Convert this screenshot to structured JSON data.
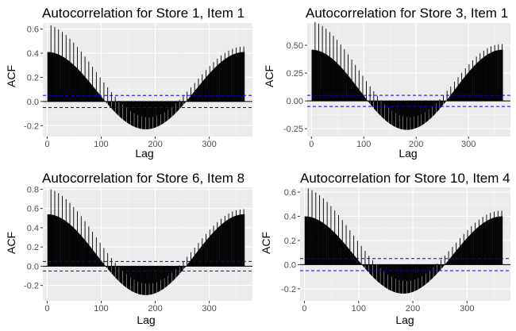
{
  "colors": {
    "panel_background": "#ebebeb",
    "grid_major": "#ffffff",
    "grid_minor": "#f5f5f5",
    "bars": "#000000",
    "confidence_bounds": "#0000ff",
    "tick_label": "#4d4d4d"
  },
  "chart_data": [
    {
      "type": "bar",
      "title": "Autocorrelation for Store 1, Item 1",
      "xlabel": "Lag",
      "ylabel": "ACF",
      "xlim": [
        -8,
        380
      ],
      "ylim": [
        -0.29,
        0.65
      ],
      "x_ticks": [
        0,
        100,
        200,
        300
      ],
      "x_tick_labels": [
        "0",
        "100",
        "200",
        "300"
      ],
      "y_ticks": [
        -0.2,
        0,
        0.2,
        0.4,
        0.6
      ],
      "y_tick_labels": [
        "-0.2",
        "0.0",
        "0.2",
        "0.4",
        "0.6"
      ],
      "confidence_bound": 0.05,
      "grid": true,
      "acf_model": {
        "lags": [
          1,
          365
        ],
        "amplitude": 0.32,
        "offset": 0.09,
        "period": 365,
        "weekly_spike": 0.23,
        "weekly_decay": 0.0045
      }
    },
    {
      "type": "bar",
      "title": "Autocorrelation for Store 3, Item 1",
      "xlabel": "Lag",
      "ylabel": "ACF",
      "xlim": [
        -8,
        380
      ],
      "ylim": [
        -0.32,
        0.7
      ],
      "x_ticks": [
        0,
        100,
        200,
        300
      ],
      "x_tick_labels": [
        "0",
        "100",
        "200",
        "300"
      ],
      "y_ticks": [
        -0.25,
        0,
        0.25,
        0.5
      ],
      "y_tick_labels": [
        "-0.25",
        "0.00",
        "0.25",
        "0.50"
      ],
      "confidence_bound": 0.05,
      "grid": true,
      "acf_model": {
        "lags": [
          1,
          365
        ],
        "amplitude": 0.36,
        "offset": 0.1,
        "period": 365,
        "weekly_spike": 0.26,
        "weekly_decay": 0.0045
      }
    },
    {
      "type": "bar",
      "title": "Autocorrelation for Store 6, Item 8",
      "xlabel": "Lag",
      "ylabel": "ACF",
      "xlim": [
        -8,
        380
      ],
      "ylim": [
        -0.36,
        0.82
      ],
      "x_ticks": [
        0,
        100,
        200,
        300
      ],
      "x_tick_labels": [
        "0",
        "100",
        "200",
        "300"
      ],
      "y_ticks": [
        -0.2,
        0,
        0.2,
        0.4,
        0.6,
        0.8
      ],
      "y_tick_labels": [
        "-0.2",
        "0.0",
        "0.2",
        "0.4",
        "0.6",
        "0.8"
      ],
      "confidence_bound": 0.05,
      "grid": true,
      "acf_model": {
        "lags": [
          1,
          365
        ],
        "amplitude": 0.42,
        "offset": 0.12,
        "period": 365,
        "weekly_spike": 0.27,
        "weekly_decay": 0.0045
      }
    },
    {
      "type": "bar",
      "title": "Autocorrelation for Store 10, Item 4",
      "xlabel": "Lag",
      "ylabel": "ACF",
      "xlim": [
        -8,
        380
      ],
      "ylim": [
        -0.3,
        0.64
      ],
      "x_ticks": [
        0,
        100,
        200,
        300
      ],
      "x_tick_labels": [
        "0",
        "100",
        "200",
        "300"
      ],
      "y_ticks": [
        -0.2,
        0,
        0.2,
        0.4,
        0.6
      ],
      "y_tick_labels": [
        "-0.2",
        "0.0",
        "0.2",
        "0.4",
        "0.6"
      ],
      "confidence_bound": 0.05,
      "grid": true,
      "acf_model": {
        "lags": [
          1,
          365
        ],
        "amplitude": 0.32,
        "offset": 0.08,
        "period": 365,
        "weekly_spike": 0.24,
        "weekly_decay": 0.0045
      }
    }
  ]
}
